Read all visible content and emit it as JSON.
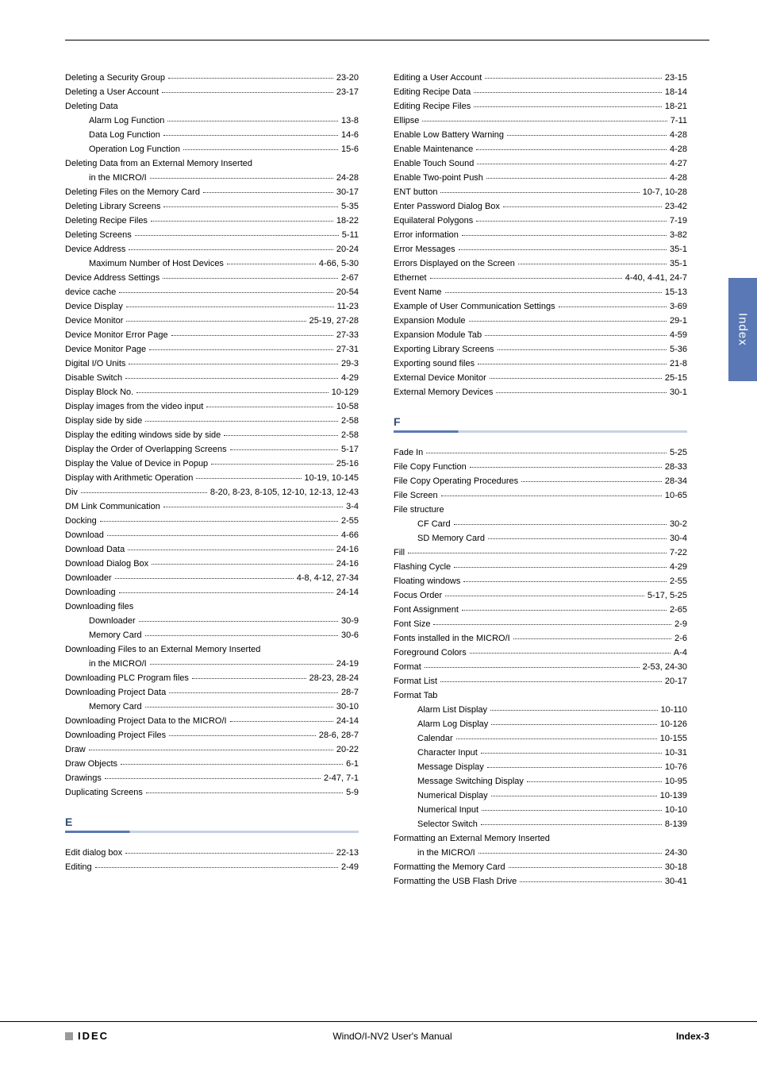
{
  "page": {
    "side_tab_label": "Index",
    "footer_center": "WindO/I-NV2 User's Manual",
    "footer_right": "Index-3",
    "footer_logo": "IDEC"
  },
  "sections": {
    "e_heading": "E",
    "f_heading": "F"
  },
  "left_before_e": [
    {
      "t": "Deleting a Security Group",
      "p": "23-20"
    },
    {
      "t": "Deleting a User Account",
      "p": "23-17"
    },
    {
      "t": "Deleting Data",
      "nopg": true
    },
    {
      "t": "Alarm Log Function",
      "p": "13-8",
      "lvl": 1
    },
    {
      "t": "Data Log Function",
      "p": "14-6",
      "lvl": 1
    },
    {
      "t": "Operation Log Function",
      "p": "15-6",
      "lvl": 1
    },
    {
      "t": "Deleting Data from an External Memory Inserted",
      "nopg": true
    },
    {
      "t": "in the MICRO/I",
      "p": "24-28",
      "lvl": 1
    },
    {
      "t": "Deleting Files on the Memory Card",
      "p": "30-17"
    },
    {
      "t": "Deleting Library Screens",
      "p": "5-35"
    },
    {
      "t": "Deleting Recipe Files",
      "p": "18-22"
    },
    {
      "t": "Deleting Screens",
      "p": "5-11"
    },
    {
      "t": "Device Address",
      "p": "20-24"
    },
    {
      "t": "Maximum Number of Host Devices",
      "p": "4-66, 5-30",
      "lvl": 1
    },
    {
      "t": "Device Address Settings",
      "p": "2-67"
    },
    {
      "t": "device cache",
      "p": "20-54"
    },
    {
      "t": "Device Display",
      "p": "11-23"
    },
    {
      "t": "Device Monitor",
      "p": "25-19, 27-28"
    },
    {
      "t": "Device Monitor Error Page",
      "p": "27-33"
    },
    {
      "t": "Device Monitor Page",
      "p": "27-31"
    },
    {
      "t": "Digital I/O Units",
      "p": "29-3"
    },
    {
      "t": "Disable Switch",
      "p": "4-29"
    },
    {
      "t": "Display Block No.",
      "p": "10-129"
    },
    {
      "t": "Display images from the video input",
      "p": "10-58"
    },
    {
      "t": "Display side by side",
      "p": "2-58"
    },
    {
      "t": "Display the editing windows side by side",
      "p": "2-58"
    },
    {
      "t": "Display the Order of Overlapping Screens",
      "p": "5-17"
    },
    {
      "t": "Display the Value of Device in Popup",
      "p": "25-16"
    },
    {
      "t": "Display with Arithmetic Operation",
      "p": "10-19, 10-145"
    },
    {
      "t": "Div",
      "p": "8-20, 8-23, 8-105, 12-10, 12-13, 12-43"
    },
    {
      "t": "DM Link Communication",
      "p": "3-4"
    },
    {
      "t": "Docking",
      "p": "2-55"
    },
    {
      "t": "Download",
      "p": "4-66"
    },
    {
      "t": "Download Data",
      "p": "24-16"
    },
    {
      "t": "Download Dialog Box",
      "p": "24-16"
    },
    {
      "t": "Downloader",
      "p": "4-8, 4-12, 27-34"
    },
    {
      "t": "Downloading",
      "p": "24-14"
    },
    {
      "t": "Downloading files",
      "nopg": true
    },
    {
      "t": "Downloader",
      "p": "30-9",
      "lvl": 1
    },
    {
      "t": "Memory Card",
      "p": "30-6",
      "lvl": 1
    },
    {
      "t": "Downloading Files to an External Memory Inserted",
      "nopg": true
    },
    {
      "t": "in the MICRO/I",
      "p": "24-19",
      "lvl": 1
    },
    {
      "t": "Downloading PLC Program files",
      "p": "28-23, 28-24"
    },
    {
      "t": "Downloading Project Data",
      "p": "28-7"
    },
    {
      "t": "Memory Card",
      "p": "30-10",
      "lvl": 1
    },
    {
      "t": "Downloading Project Data to the MICRO/I",
      "p": "24-14"
    },
    {
      "t": "Downloading Project Files",
      "p": "28-6, 28-7"
    },
    {
      "t": "Draw",
      "p": "20-22"
    },
    {
      "t": "Draw Objects",
      "p": "6-1"
    },
    {
      "t": "Drawings",
      "p": "2-47, 7-1"
    },
    {
      "t": "Duplicating Screens",
      "p": "5-9"
    }
  ],
  "left_after_e": [
    {
      "t": "Edit dialog box",
      "p": "22-13"
    },
    {
      "t": "Editing",
      "p": "2-49"
    }
  ],
  "right_before_f": [
    {
      "t": "Editing a User Account",
      "p": "23-15"
    },
    {
      "t": "Editing Recipe Data",
      "p": "18-14"
    },
    {
      "t": "Editing Recipe Files",
      "p": "18-21"
    },
    {
      "t": "Ellipse",
      "p": "7-11"
    },
    {
      "t": "Enable Low Battery Warning",
      "p": "4-28"
    },
    {
      "t": "Enable Maintenance",
      "p": "4-28"
    },
    {
      "t": "Enable Touch Sound",
      "p": "4-27"
    },
    {
      "t": "Enable Two-point Push",
      "p": "4-28"
    },
    {
      "t": "ENT button",
      "p": "10-7, 10-28"
    },
    {
      "t": "Enter Password Dialog Box",
      "p": "23-42"
    },
    {
      "t": "Equilateral Polygons",
      "p": "7-19"
    },
    {
      "t": "Error information",
      "p": "3-82"
    },
    {
      "t": "Error Messages",
      "p": "35-1"
    },
    {
      "t": "Errors Displayed on the Screen",
      "p": "35-1"
    },
    {
      "t": "Ethernet",
      "p": "4-40, 4-41, 24-7"
    },
    {
      "t": "Event Name",
      "p": "15-13"
    },
    {
      "t": "Example of User Communication Settings",
      "p": "3-69"
    },
    {
      "t": "Expansion Module",
      "p": "29-1"
    },
    {
      "t": "Expansion Module Tab",
      "p": "4-59"
    },
    {
      "t": "Exporting Library Screens",
      "p": "5-36"
    },
    {
      "t": "Exporting sound files",
      "p": "21-8"
    },
    {
      "t": "External Device Monitor",
      "p": "25-15"
    },
    {
      "t": "External Memory Devices",
      "p": "30-1"
    }
  ],
  "right_after_f": [
    {
      "t": "Fade In",
      "p": "5-25"
    },
    {
      "t": "File Copy Function",
      "p": "28-33"
    },
    {
      "t": "File Copy Operating Procedures",
      "p": "28-34"
    },
    {
      "t": "File Screen",
      "p": "10-65"
    },
    {
      "t": "File structure",
      "nopg": true
    },
    {
      "t": "CF Card",
      "p": "30-2",
      "lvl": 1
    },
    {
      "t": "SD Memory Card",
      "p": "30-4",
      "lvl": 1
    },
    {
      "t": "Fill",
      "p": "7-22"
    },
    {
      "t": "Flashing Cycle",
      "p": "4-29"
    },
    {
      "t": "Floating windows",
      "p": "2-55"
    },
    {
      "t": "Focus Order",
      "p": "5-17, 5-25"
    },
    {
      "t": "Font Assignment",
      "p": "2-65"
    },
    {
      "t": "Font Size",
      "p": "2-9"
    },
    {
      "t": "Fonts installed in the MICRO/I",
      "p": "2-6"
    },
    {
      "t": "Foreground Colors",
      "p": "A-4"
    },
    {
      "t": "Format",
      "p": "2-53, 24-30"
    },
    {
      "t": "Format List",
      "p": "20-17"
    },
    {
      "t": "Format Tab",
      "nopg": true
    },
    {
      "t": "Alarm List Display",
      "p": "10-110",
      "lvl": 1
    },
    {
      "t": "Alarm Log Display",
      "p": "10-126",
      "lvl": 1
    },
    {
      "t": "Calendar",
      "p": "10-155",
      "lvl": 1
    },
    {
      "t": "Character Input",
      "p": "10-31",
      "lvl": 1
    },
    {
      "t": "Message Display",
      "p": "10-76",
      "lvl": 1
    },
    {
      "t": "Message Switching Display",
      "p": "10-95",
      "lvl": 1
    },
    {
      "t": "Numerical Display",
      "p": "10-139",
      "lvl": 1
    },
    {
      "t": "Numerical Input",
      "p": "10-10",
      "lvl": 1
    },
    {
      "t": "Selector Switch",
      "p": "8-139",
      "lvl": 1
    },
    {
      "t": "Formatting an External Memory Inserted",
      "nopg": true
    },
    {
      "t": "in the MICRO/I",
      "p": "24-30",
      "lvl": 1
    },
    {
      "t": "Formatting the Memory Card",
      "p": "30-18"
    },
    {
      "t": "Formatting the USB Flash Drive",
      "p": "30-41"
    }
  ]
}
